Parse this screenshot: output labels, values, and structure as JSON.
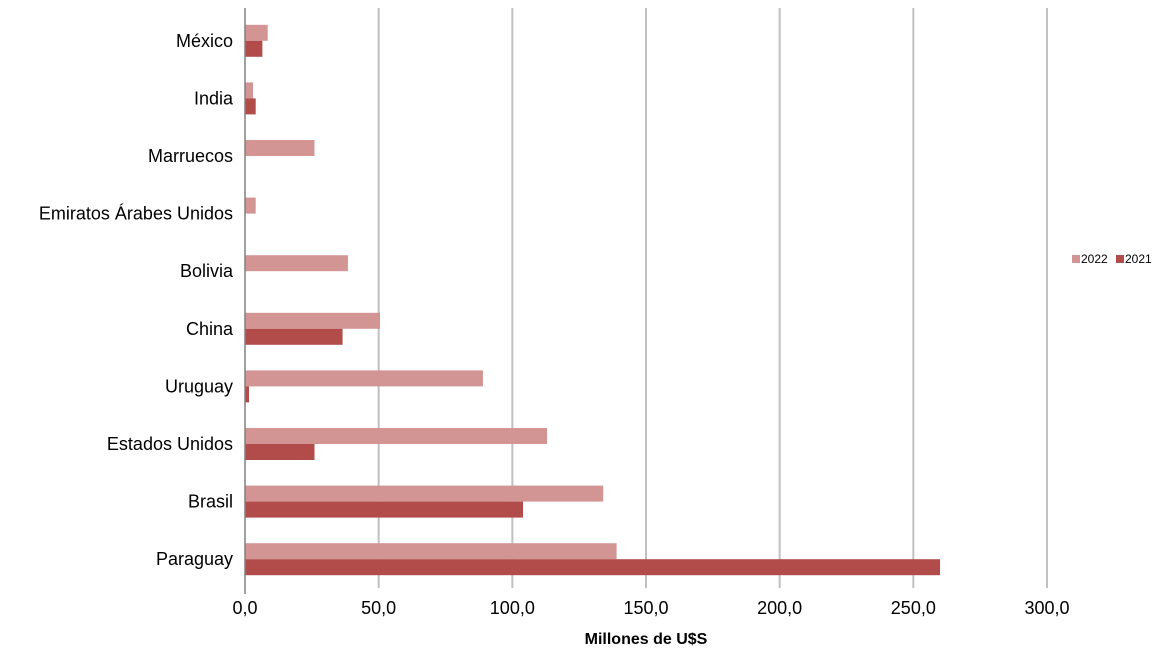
{
  "chart_data": {
    "type": "bar",
    "orientation": "horizontal",
    "categories": [
      "México",
      "India",
      "Marruecos",
      "Emiratos Árabes Unidos",
      "Bolivia",
      "China",
      "Uruguay",
      "Estados Unidos",
      "Brasil",
      "Paraguay"
    ],
    "series": [
      {
        "name": "2022",
        "color": "#d39593",
        "values": [
          8.5,
          3.0,
          26.0,
          4.0,
          38.5,
          50.5,
          89.0,
          113.0,
          134.0,
          139.0
        ]
      },
      {
        "name": "2021",
        "color": "#b14c4a",
        "values": [
          6.5,
          4.0,
          0,
          0,
          0,
          36.5,
          1.5,
          26.0,
          104.0,
          260.0
        ]
      }
    ],
    "xlabel": "Millones de U$S",
    "ylabel": "",
    "xlim": [
      0,
      300
    ],
    "x_ticks": [
      "0,0",
      "50,0",
      "100,0",
      "150,0",
      "200,0",
      "250,0",
      "300,0"
    ],
    "x_tick_values": [
      0,
      50,
      100,
      150,
      200,
      250,
      300
    ],
    "grid": "vertical",
    "legend_position": "right"
  }
}
